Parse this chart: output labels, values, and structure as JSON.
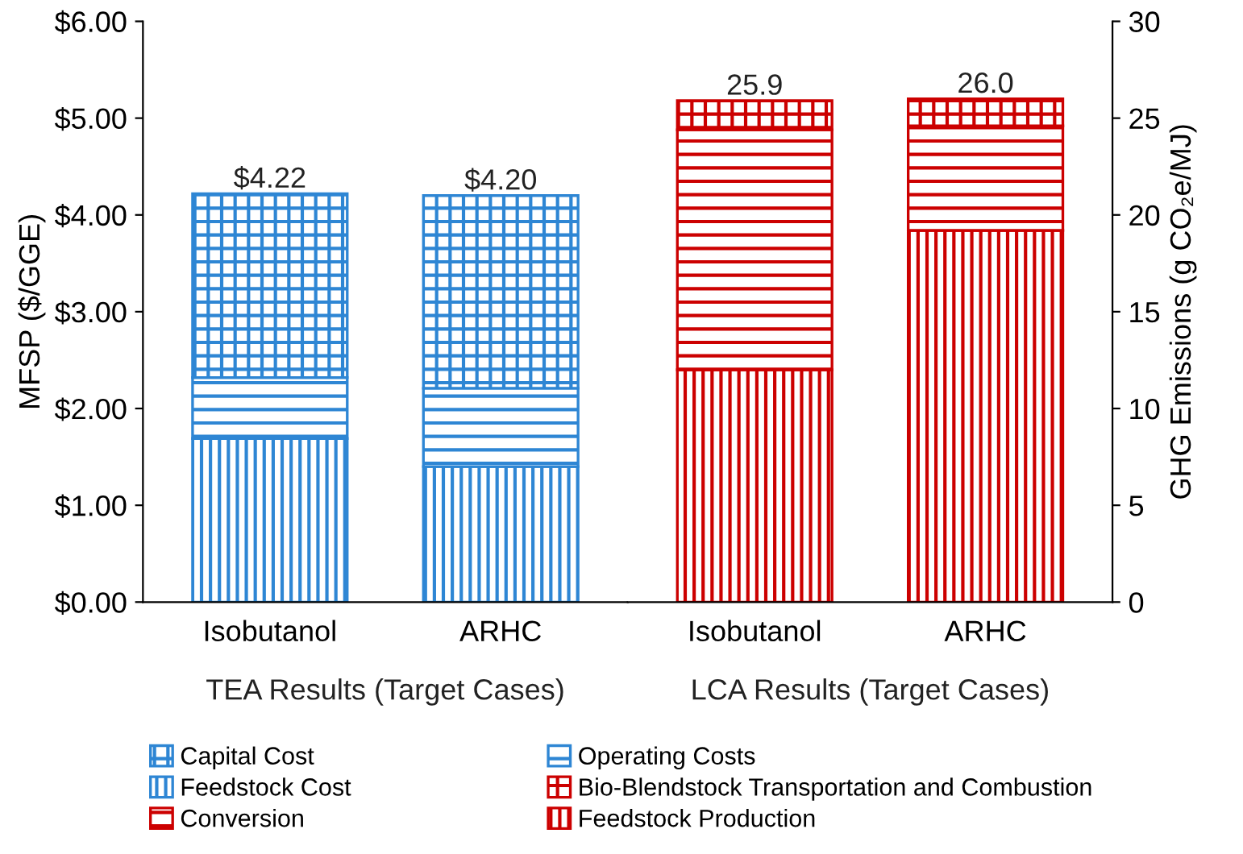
{
  "chart_data": [
    {
      "type": "bar",
      "stacked": true,
      "categories": [
        "Isobutanol",
        "ARHC"
      ],
      "xlabel": "TEA Results (Target Cases)",
      "ylabel": "MFSP ($/GGE)",
      "ylim": [
        0,
        6
      ],
      "yticks": [
        {
          "value": 0,
          "label": "$0.00"
        },
        {
          "value": 1,
          "label": "$1.00"
        },
        {
          "value": 2,
          "label": "$2.00"
        },
        {
          "value": 3,
          "label": "$3.00"
        },
        {
          "value": 4,
          "label": "$4.00"
        },
        {
          "value": 5,
          "label": "$5.00"
        },
        {
          "value": 6,
          "label": "$6.00"
        }
      ],
      "series": [
        {
          "name": "Feedstock Cost",
          "color": "#2e86d4",
          "values": [
            1.69,
            1.4
          ]
        },
        {
          "name": "Operating Costs",
          "color": "#2e86d4",
          "values": [
            0.63,
            0.81
          ]
        },
        {
          "name": "Capital Cost",
          "color": "#2e86d4",
          "values": [
            1.9,
            1.99
          ]
        }
      ],
      "totals": [
        "$4.22",
        "$4.20"
      ],
      "grid": false,
      "legend": "bottom"
    },
    {
      "type": "bar",
      "stacked": true,
      "categories": [
        "Isobutanol",
        "ARHC"
      ],
      "xlabel": "LCA Results (Target Cases)",
      "ylabel": "GHG Emissions (g CO₂e/MJ)",
      "ylim": [
        0,
        30
      ],
      "yticks": [
        0,
        5,
        10,
        15,
        20,
        25,
        30
      ],
      "series": [
        {
          "name": "Feedstock Production",
          "color": "#cc0000",
          "values": [
            12.0,
            19.2
          ]
        },
        {
          "name": "Conversion",
          "color": "#cc0000",
          "values": [
            12.4,
            5.4
          ]
        },
        {
          "name": "Bio-Blendstock Transportation and Combustion",
          "color": "#cc0000",
          "values": [
            1.5,
            1.4
          ]
        }
      ],
      "totals": [
        "25.9",
        "26.0"
      ],
      "grid": false,
      "legend": "bottom"
    }
  ]
}
